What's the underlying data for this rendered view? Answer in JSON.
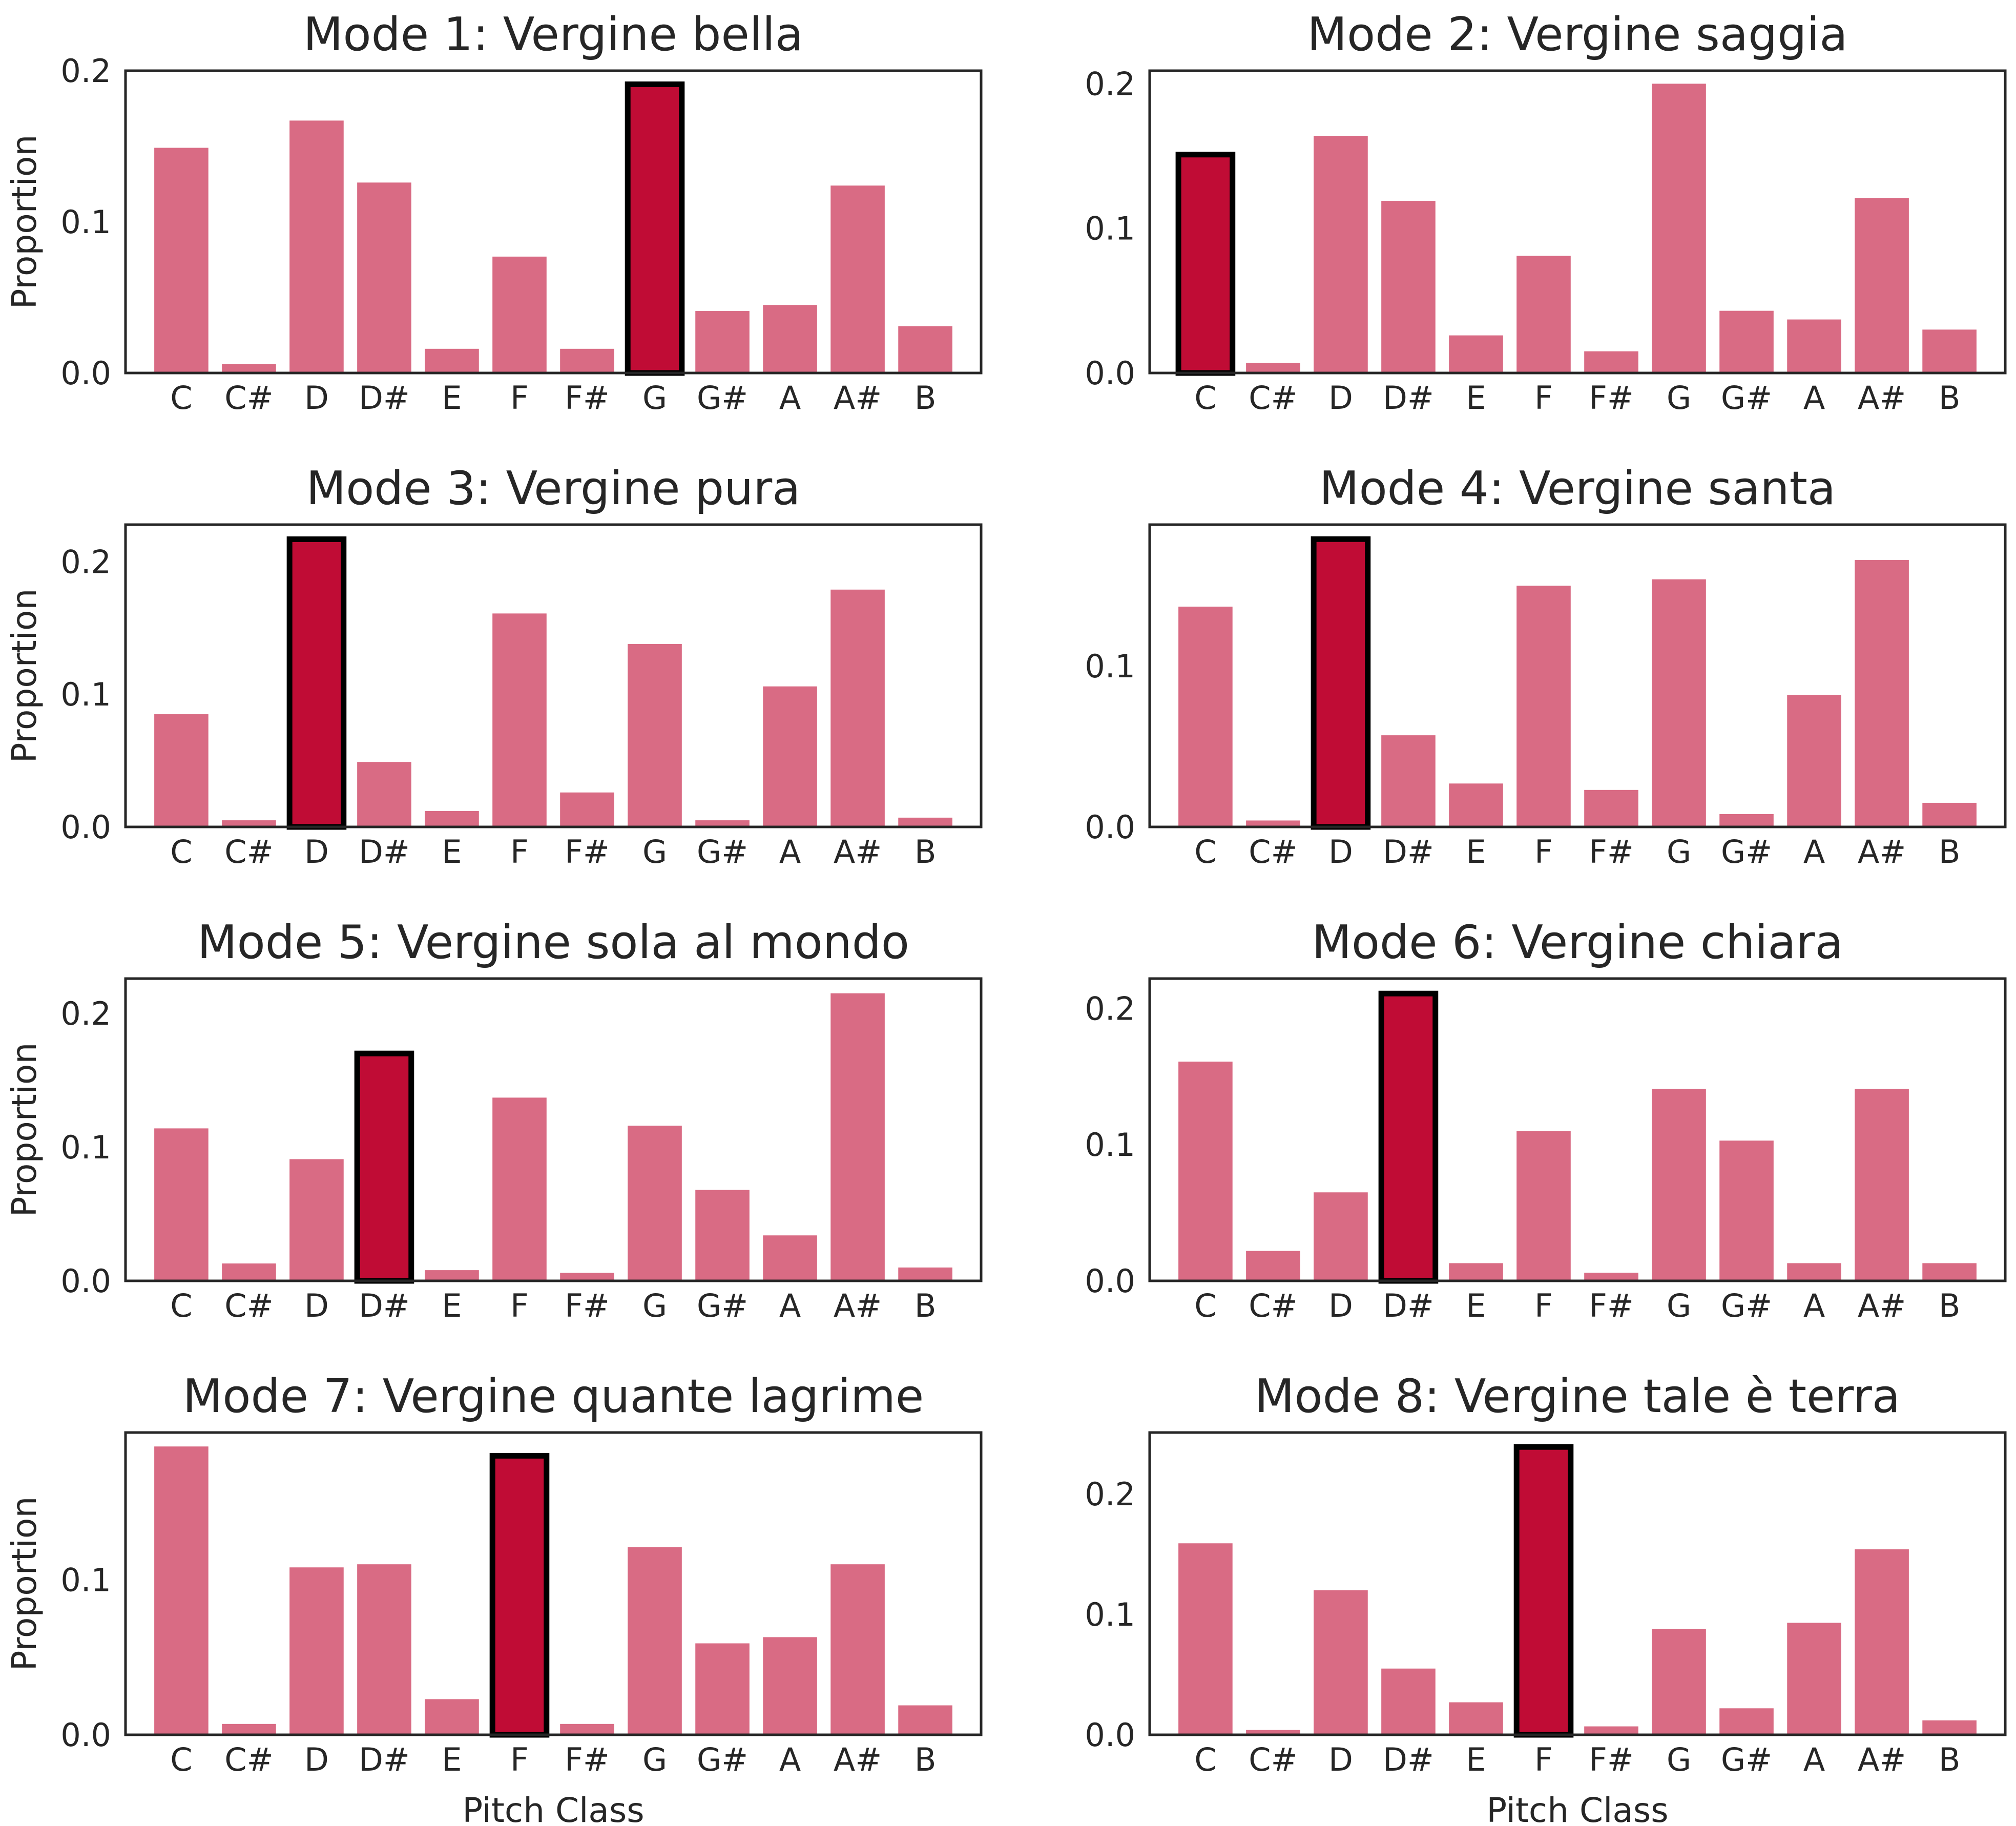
{
  "colors": {
    "bar": "#d96b84",
    "highlight": "#c00c35",
    "highlight_edge": "#000000",
    "axes_edge": "#262626",
    "text": "#262626"
  },
  "chart_data": [
    {
      "type": "bar",
      "title": "Mode 1: Vergine bella",
      "categories": [
        "C",
        "C#",
        "D",
        "D#",
        "E",
        "F",
        "F#",
        "G",
        "G#",
        "A",
        "A#",
        "B"
      ],
      "values": [
        0.149,
        0.006,
        0.167,
        0.126,
        0.016,
        0.077,
        0.016,
        0.191,
        0.041,
        0.045,
        0.124,
        0.031
      ],
      "highlight_index": 7,
      "ylim": [
        0,
        0.2
      ],
      "yticks": [
        0.0,
        0.1,
        0.2
      ],
      "ytick_labels": [
        "0.0",
        "0.1",
        "0.2"
      ],
      "xlabel": "",
      "ylabel": "Proportion",
      "grid": false
    },
    {
      "type": "bar",
      "title": "Mode 2: Vergine saggia",
      "categories": [
        "C",
        "C#",
        "D",
        "D#",
        "E",
        "F",
        "F#",
        "G",
        "G#",
        "A",
        "A#",
        "B"
      ],
      "values": [
        0.151,
        0.007,
        0.164,
        0.119,
        0.026,
        0.081,
        0.015,
        0.2,
        0.043,
        0.037,
        0.121,
        0.03
      ],
      "highlight_index": 0,
      "ylim": [
        0,
        0.209
      ],
      "yticks": [
        0.0,
        0.1,
        0.2
      ],
      "ytick_labels": [
        "0.0",
        "0.1",
        "0.2"
      ],
      "xlabel": "",
      "ylabel": "",
      "grid": false
    },
    {
      "type": "bar",
      "title": "Mode 3: Vergine pura",
      "categories": [
        "C",
        "C#",
        "D",
        "D#",
        "E",
        "F",
        "F#",
        "G",
        "G#",
        "A",
        "A#",
        "B"
      ],
      "values": [
        0.085,
        0.005,
        0.217,
        0.049,
        0.012,
        0.161,
        0.026,
        0.138,
        0.005,
        0.106,
        0.179,
        0.007
      ],
      "highlight_index": 2,
      "ylim": [
        0,
        0.228
      ],
      "yticks": [
        0.0,
        0.1,
        0.2
      ],
      "ytick_labels": [
        "0.0",
        "0.1",
        "0.2"
      ],
      "xlabel": "",
      "ylabel": "Proportion",
      "grid": false
    },
    {
      "type": "bar",
      "title": "Mode 4: Vergine santa",
      "categories": [
        "C",
        "C#",
        "D",
        "D#",
        "E",
        "F",
        "F#",
        "G",
        "G#",
        "A",
        "A#",
        "B"
      ],
      "values": [
        0.137,
        0.004,
        0.179,
        0.057,
        0.027,
        0.15,
        0.023,
        0.154,
        0.008,
        0.082,
        0.166,
        0.015
      ],
      "highlight_index": 2,
      "ylim": [
        0,
        0.188
      ],
      "yticks": [
        0.0,
        0.1
      ],
      "ytick_labels": [
        "0.0",
        "0.1"
      ],
      "xlabel": "",
      "ylabel": "",
      "grid": false
    },
    {
      "type": "bar",
      "title": "Mode 5: Vergine sola al mondo",
      "categories": [
        "C",
        "C#",
        "D",
        "D#",
        "E",
        "F",
        "F#",
        "G",
        "G#",
        "A",
        "A#",
        "B"
      ],
      "values": [
        0.114,
        0.013,
        0.091,
        0.17,
        0.008,
        0.137,
        0.006,
        0.116,
        0.068,
        0.034,
        0.215,
        0.01
      ],
      "highlight_index": 3,
      "ylim": [
        0,
        0.226
      ],
      "yticks": [
        0.0,
        0.1,
        0.2
      ],
      "ytick_labels": [
        "0.0",
        "0.1",
        "0.2"
      ],
      "xlabel": "",
      "ylabel": "Proportion",
      "grid": false
    },
    {
      "type": "bar",
      "title": "Mode 6: Vergine chiara",
      "categories": [
        "C",
        "C#",
        "D",
        "D#",
        "E",
        "F",
        "F#",
        "G",
        "G#",
        "A",
        "A#",
        "B"
      ],
      "values": [
        0.161,
        0.022,
        0.065,
        0.211,
        0.013,
        0.11,
        0.006,
        0.141,
        0.103,
        0.013,
        0.141,
        0.013
      ],
      "highlight_index": 3,
      "ylim": [
        0,
        0.222
      ],
      "yticks": [
        0.0,
        0.1,
        0.2
      ],
      "ytick_labels": [
        "0.0",
        "0.1",
        "0.2"
      ],
      "xlabel": "",
      "ylabel": "",
      "grid": false
    },
    {
      "type": "bar",
      "title": "Mode 7: Vergine quante lagrime",
      "categories": [
        "C",
        "C#",
        "D",
        "D#",
        "E",
        "F",
        "F#",
        "G",
        "G#",
        "A",
        "A#",
        "B"
      ],
      "values": [
        0.186,
        0.007,
        0.108,
        0.11,
        0.023,
        0.18,
        0.007,
        0.121,
        0.059,
        0.063,
        0.11,
        0.019
      ],
      "highlight_index": 5,
      "ylim": [
        0,
        0.195
      ],
      "yticks": [
        0.0,
        0.1
      ],
      "ytick_labels": [
        "0.0",
        "0.1"
      ],
      "xlabel": "Pitch Class",
      "ylabel": "Proportion",
      "grid": false
    },
    {
      "type": "bar",
      "title": "Mode 8: Vergine tale è terra",
      "categories": [
        "C",
        "C#",
        "D",
        "D#",
        "E",
        "F",
        "F#",
        "G",
        "G#",
        "A",
        "A#",
        "B"
      ],
      "values": [
        0.159,
        0.004,
        0.12,
        0.055,
        0.027,
        0.239,
        0.007,
        0.088,
        0.022,
        0.093,
        0.154,
        0.012
      ],
      "highlight_index": 5,
      "ylim": [
        0,
        0.251
      ],
      "yticks": [
        0.0,
        0.1,
        0.2
      ],
      "ytick_labels": [
        "0.0",
        "0.1",
        "0.2"
      ],
      "xlabel": "Pitch Class",
      "ylabel": "",
      "grid": false
    }
  ]
}
